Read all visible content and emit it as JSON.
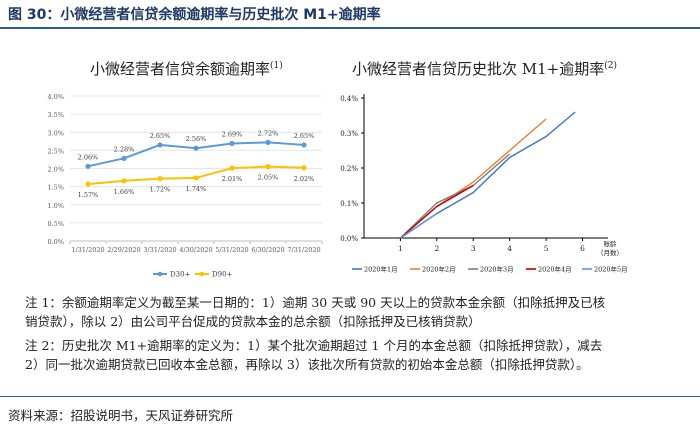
{
  "figure": {
    "title": "图 30：小微经营者信贷余额逾期率与历史批次 M1+逾期率",
    "source": "资料来源：招股说明书，天风证券研究所"
  },
  "notes": {
    "note1_line1": "注 1：余额逾期率定义为截至某一日期的：1）逾期 30 天或 90 天以上的贷款本金余额（扣除抵押及已核",
    "note1_line2": "销贷款），除以 2）由公司平台促成的贷款本金的总余额（扣除抵押及已核销贷款）",
    "note2_line1": "注 2：历史批次 M1+逾期率的定义为：1）某个批次逾期超过 1 个月的本金总额（扣除抵押贷款），减去",
    "note2_line2": "2）同一批次逾期贷款已回收本金总额，再除以 3）该批次所有贷款的初始本金总额（扣除抵押贷款）。"
  },
  "colors": {
    "d30": "#5b9bd5",
    "d90": "#ffc000",
    "m1": "#4472c4",
    "m2": "#ed7d31",
    "m3": "#7f7f7f",
    "m4": "#c00000",
    "m5": "#5b9bd5"
  },
  "chart_data": [
    {
      "type": "line",
      "title": "小微经营者信贷余额逾期率(1)",
      "title_base": "小微经营者信贷余额逾期率",
      "title_sup": "(1)",
      "categories": [
        "1/31/2020",
        "2/29/2020",
        "3/31/2020",
        "4/30/2020",
        "5/31/2020",
        "6/30/2020",
        "7/31/2020"
      ],
      "yticks": [
        "0.0%",
        "0.5%",
        "1.0%",
        "1.5%",
        "2.0%",
        "2.5%",
        "3.0%",
        "3.5%",
        "4.0%"
      ],
      "ylim": [
        0,
        4
      ],
      "legend_position": "bottom",
      "series": [
        {
          "name": "D30+",
          "values": [
            2.06,
            2.28,
            2.65,
            2.56,
            2.69,
            2.72,
            2.65
          ],
          "labels": [
            "2.06%",
            "2.28%",
            "2.65%",
            "2.56%",
            "2.69%",
            "2.72%",
            "2.65%"
          ]
        },
        {
          "name": "D90+",
          "values": [
            1.57,
            1.66,
            1.72,
            1.74,
            2.01,
            2.05,
            2.02
          ],
          "labels": [
            "1.57%",
            "1.66%",
            "1.72%",
            "1.74%",
            "2.01%",
            "2.05%",
            "2.02%"
          ]
        }
      ]
    },
    {
      "type": "line",
      "title": "小微经营者信贷历史批次 M1+逾期率(2)",
      "title_base": "小微经营者信贷历史批次 M1+逾期率",
      "title_sup": "(2)",
      "xlabel": "账龄（月数）",
      "xlabel_line1": "账龄",
      "xlabel_line2": "（月数）",
      "xticks": [
        "1",
        "2",
        "3",
        "4",
        "5",
        "6"
      ],
      "xlim": [
        0,
        6.7
      ],
      "yticks": [
        "0.0%",
        "0.1%",
        "0.2%",
        "0.3%",
        "0.4%"
      ],
      "ylim": [
        0,
        0.4
      ],
      "legend_position": "bottom",
      "series": [
        {
          "name": "2020年1月",
          "x": [
            1,
            2,
            3,
            4,
            5,
            5.8
          ],
          "values": [
            0,
            0.07,
            0.13,
            0.23,
            0.29,
            0.36
          ]
        },
        {
          "name": "2020年2月",
          "x": [
            1,
            2,
            3,
            4,
            5
          ],
          "values": [
            0,
            0.09,
            0.16,
            0.25,
            0.34
          ]
        },
        {
          "name": "2020年3月",
          "x": [
            1,
            2,
            3,
            4
          ],
          "values": [
            0,
            0.1,
            0.15,
            0.24
          ]
        },
        {
          "name": "2020年4月",
          "x": [
            1,
            2,
            3
          ],
          "values": [
            0,
            0.09,
            0.15
          ]
        },
        {
          "name": "2020年5月",
          "x": [
            1,
            2
          ],
          "values": [
            0,
            0.07
          ]
        }
      ]
    }
  ]
}
